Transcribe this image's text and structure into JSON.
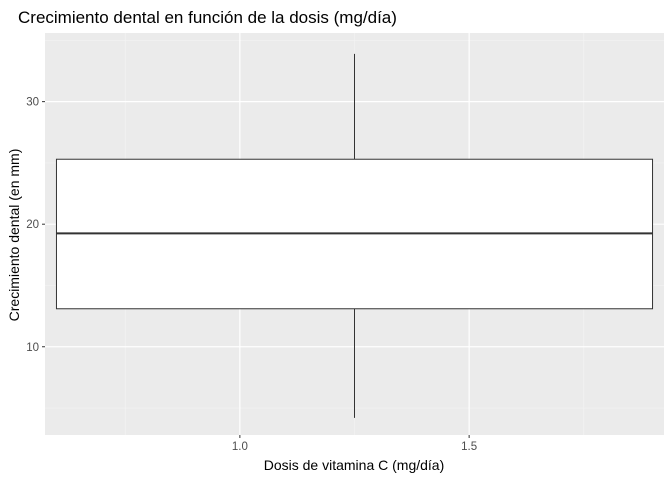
{
  "chart_data": {
    "type": "boxplot",
    "title": "Crecimiento dental en función de la dosis (mg/día)",
    "xlabel": "Dosis de vitamina C (mg/día)",
    "ylabel": "Crecimiento dental (en mm)",
    "xlim": [
      0.575,
      1.925
    ],
    "ylim": [
      2.8,
      35.6
    ],
    "x_ticks": [
      1.0,
      1.5
    ],
    "x_tick_labels": [
      "1.0",
      "1.5"
    ],
    "x_minor_ticks": [
      0.75,
      1.25,
      1.75
    ],
    "y_ticks": [
      10,
      20,
      30
    ],
    "y_tick_labels": [
      "10",
      "20",
      "30"
    ],
    "y_minor_ticks": [
      5,
      15,
      25,
      35
    ],
    "grid": true,
    "box": {
      "x_center": 1.25,
      "x_range": [
        0.6,
        1.9
      ],
      "whisker_low": 4.2,
      "q1": 13.1,
      "median": 19.25,
      "q3": 25.3,
      "whisker_high": 33.9
    },
    "colors": {
      "panel_background": "#ebebeb",
      "grid_major": "#ffffff",
      "grid_minor": "#f4f4f4",
      "box_fill": "#ffffff",
      "box_stroke": "#333333",
      "tick_color": "#333333",
      "tick_label_color": "#4d4d4d"
    }
  }
}
